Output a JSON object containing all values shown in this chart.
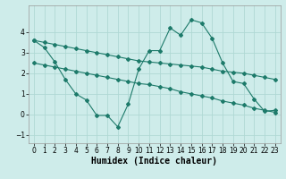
{
  "bg_color": "#ceecea",
  "grid_color": "#afd8d4",
  "line_color": "#1d7a6a",
  "xlabel": "Humidex (Indice chaleur)",
  "xlim": [
    -0.5,
    23.5
  ],
  "ylim": [
    -1.4,
    5.3
  ],
  "yticks": [
    -1,
    0,
    1,
    2,
    3,
    4
  ],
  "xticks": [
    0,
    1,
    2,
    3,
    4,
    5,
    6,
    7,
    8,
    9,
    10,
    11,
    12,
    13,
    14,
    15,
    16,
    17,
    18,
    19,
    20,
    21,
    22,
    23
  ],
  "jagged_x": [
    0,
    1,
    2,
    3,
    4,
    5,
    6,
    7,
    8,
    9,
    10,
    11,
    12,
    13,
    14,
    15,
    16,
    17,
    18,
    19,
    20,
    21,
    22,
    23
  ],
  "jagged_y": [
    3.6,
    3.25,
    2.55,
    1.7,
    1.0,
    0.7,
    -0.05,
    -0.05,
    -0.6,
    0.5,
    2.2,
    3.1,
    3.1,
    4.2,
    3.85,
    4.6,
    4.45,
    3.7,
    2.5,
    1.6,
    1.5,
    0.75,
    0.15,
    0.2
  ],
  "reg1_x": [
    0,
    1,
    2,
    3,
    4,
    5,
    6,
    7,
    8,
    9,
    10,
    11,
    12,
    13,
    14,
    15,
    16,
    17,
    18,
    19,
    20,
    21,
    22,
    23
  ],
  "reg1_y": [
    3.6,
    3.5,
    3.4,
    3.3,
    3.2,
    3.1,
    3.0,
    2.9,
    2.8,
    2.7,
    2.6,
    2.55,
    2.5,
    2.45,
    2.4,
    2.35,
    2.3,
    2.2,
    2.1,
    2.05,
    2.0,
    1.9,
    1.8,
    1.7
  ],
  "reg2_x": [
    0,
    1,
    2,
    3,
    4,
    5,
    6,
    7,
    8,
    9,
    10,
    11,
    12,
    13,
    14,
    15,
    16,
    17,
    18,
    19,
    20,
    21,
    22,
    23
  ],
  "reg2_y": [
    2.5,
    2.4,
    2.3,
    2.2,
    2.1,
    2.0,
    1.9,
    1.8,
    1.7,
    1.6,
    1.5,
    1.45,
    1.35,
    1.25,
    1.1,
    1.0,
    0.9,
    0.8,
    0.65,
    0.55,
    0.45,
    0.3,
    0.2,
    0.1
  ]
}
